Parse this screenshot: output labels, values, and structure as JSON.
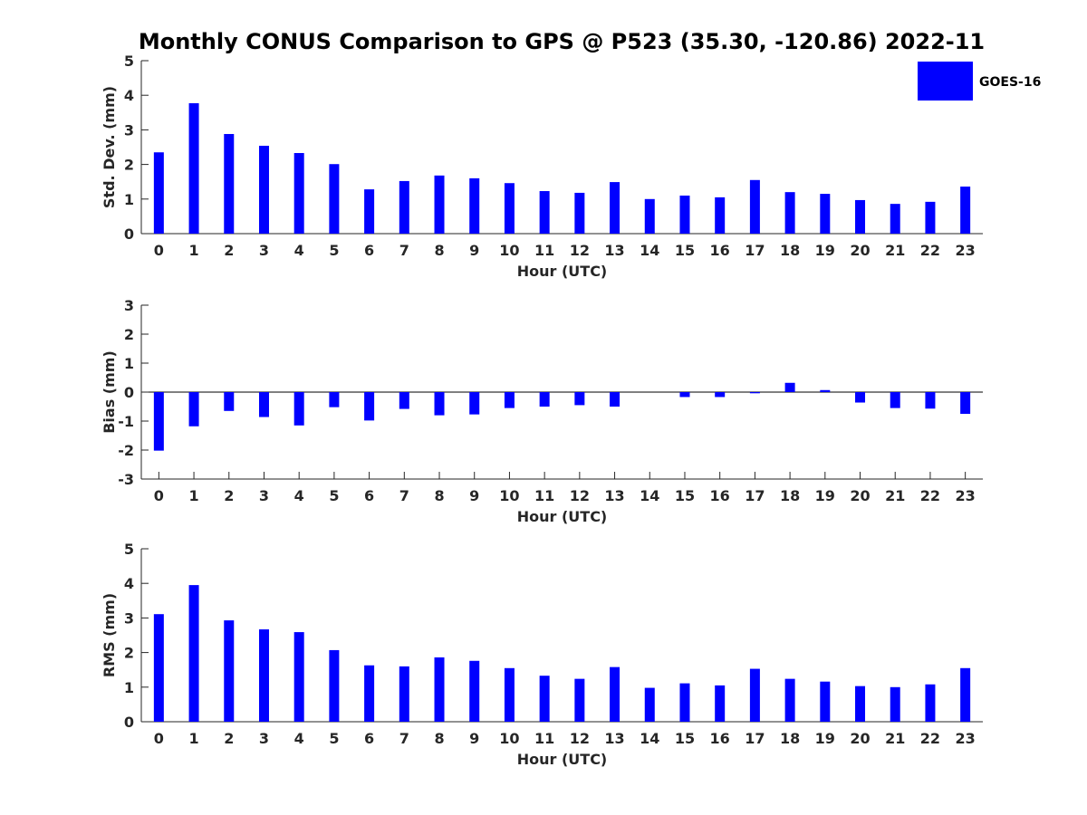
{
  "title": "Monthly CONUS Comparison to GPS @ P523 (35.30, -120.86) 2022-11",
  "legend": {
    "label": "GOES-16",
    "color": "#0000ff"
  },
  "bar_color": "#0000ff",
  "chart_data": [
    {
      "type": "bar",
      "categories": [
        "0",
        "1",
        "2",
        "3",
        "4",
        "5",
        "6",
        "7",
        "8",
        "9",
        "10",
        "11",
        "12",
        "13",
        "14",
        "15",
        "16",
        "17",
        "18",
        "19",
        "20",
        "21",
        "22",
        "23"
      ],
      "values": [
        2.35,
        3.77,
        2.88,
        2.54,
        2.33,
        2.01,
        1.28,
        1.52,
        1.68,
        1.6,
        1.46,
        1.23,
        1.18,
        1.49,
        1.0,
        1.1,
        1.05,
        1.55,
        1.2,
        1.15,
        0.97,
        0.86,
        0.92,
        1.36
      ],
      "xlabel": "Hour (UTC)",
      "ylabel": "Std. Dev. (mm)",
      "ylim": [
        0,
        5
      ],
      "yticks": [
        0,
        1,
        2,
        3,
        4,
        5
      ]
    },
    {
      "type": "bar",
      "categories": [
        "0",
        "1",
        "2",
        "3",
        "4",
        "5",
        "6",
        "7",
        "8",
        "9",
        "10",
        "11",
        "12",
        "13",
        "14",
        "15",
        "16",
        "17",
        "18",
        "19",
        "20",
        "21",
        "22",
        "23"
      ],
      "values": [
        -2.02,
        -1.18,
        -0.65,
        -0.86,
        -1.15,
        -0.52,
        -0.98,
        -0.58,
        -0.8,
        -0.77,
        -0.55,
        -0.5,
        -0.45,
        -0.5,
        0.0,
        -0.17,
        -0.17,
        -0.04,
        0.32,
        0.07,
        -0.36,
        -0.55,
        -0.57,
        -0.75
      ],
      "xlabel": "Hour (UTC)",
      "ylabel": "Bias (mm)",
      "ylim": [
        -3,
        3
      ],
      "yticks": [
        -3,
        -2,
        -1,
        0,
        1,
        2,
        3
      ]
    },
    {
      "type": "bar",
      "categories": [
        "0",
        "1",
        "2",
        "3",
        "4",
        "5",
        "6",
        "7",
        "8",
        "9",
        "10",
        "11",
        "12",
        "13",
        "14",
        "15",
        "16",
        "17",
        "18",
        "19",
        "20",
        "21",
        "22",
        "23"
      ],
      "values": [
        3.11,
        3.95,
        2.93,
        2.67,
        2.59,
        2.07,
        1.63,
        1.6,
        1.86,
        1.76,
        1.55,
        1.33,
        1.24,
        1.58,
        0.98,
        1.11,
        1.05,
        1.53,
        1.24,
        1.16,
        1.03,
        1.0,
        1.08,
        1.55
      ],
      "xlabel": "Hour (UTC)",
      "ylabel": "RMS (mm)",
      "ylim": [
        0,
        5
      ],
      "yticks": [
        0,
        1,
        2,
        3,
        4,
        5
      ]
    }
  ]
}
